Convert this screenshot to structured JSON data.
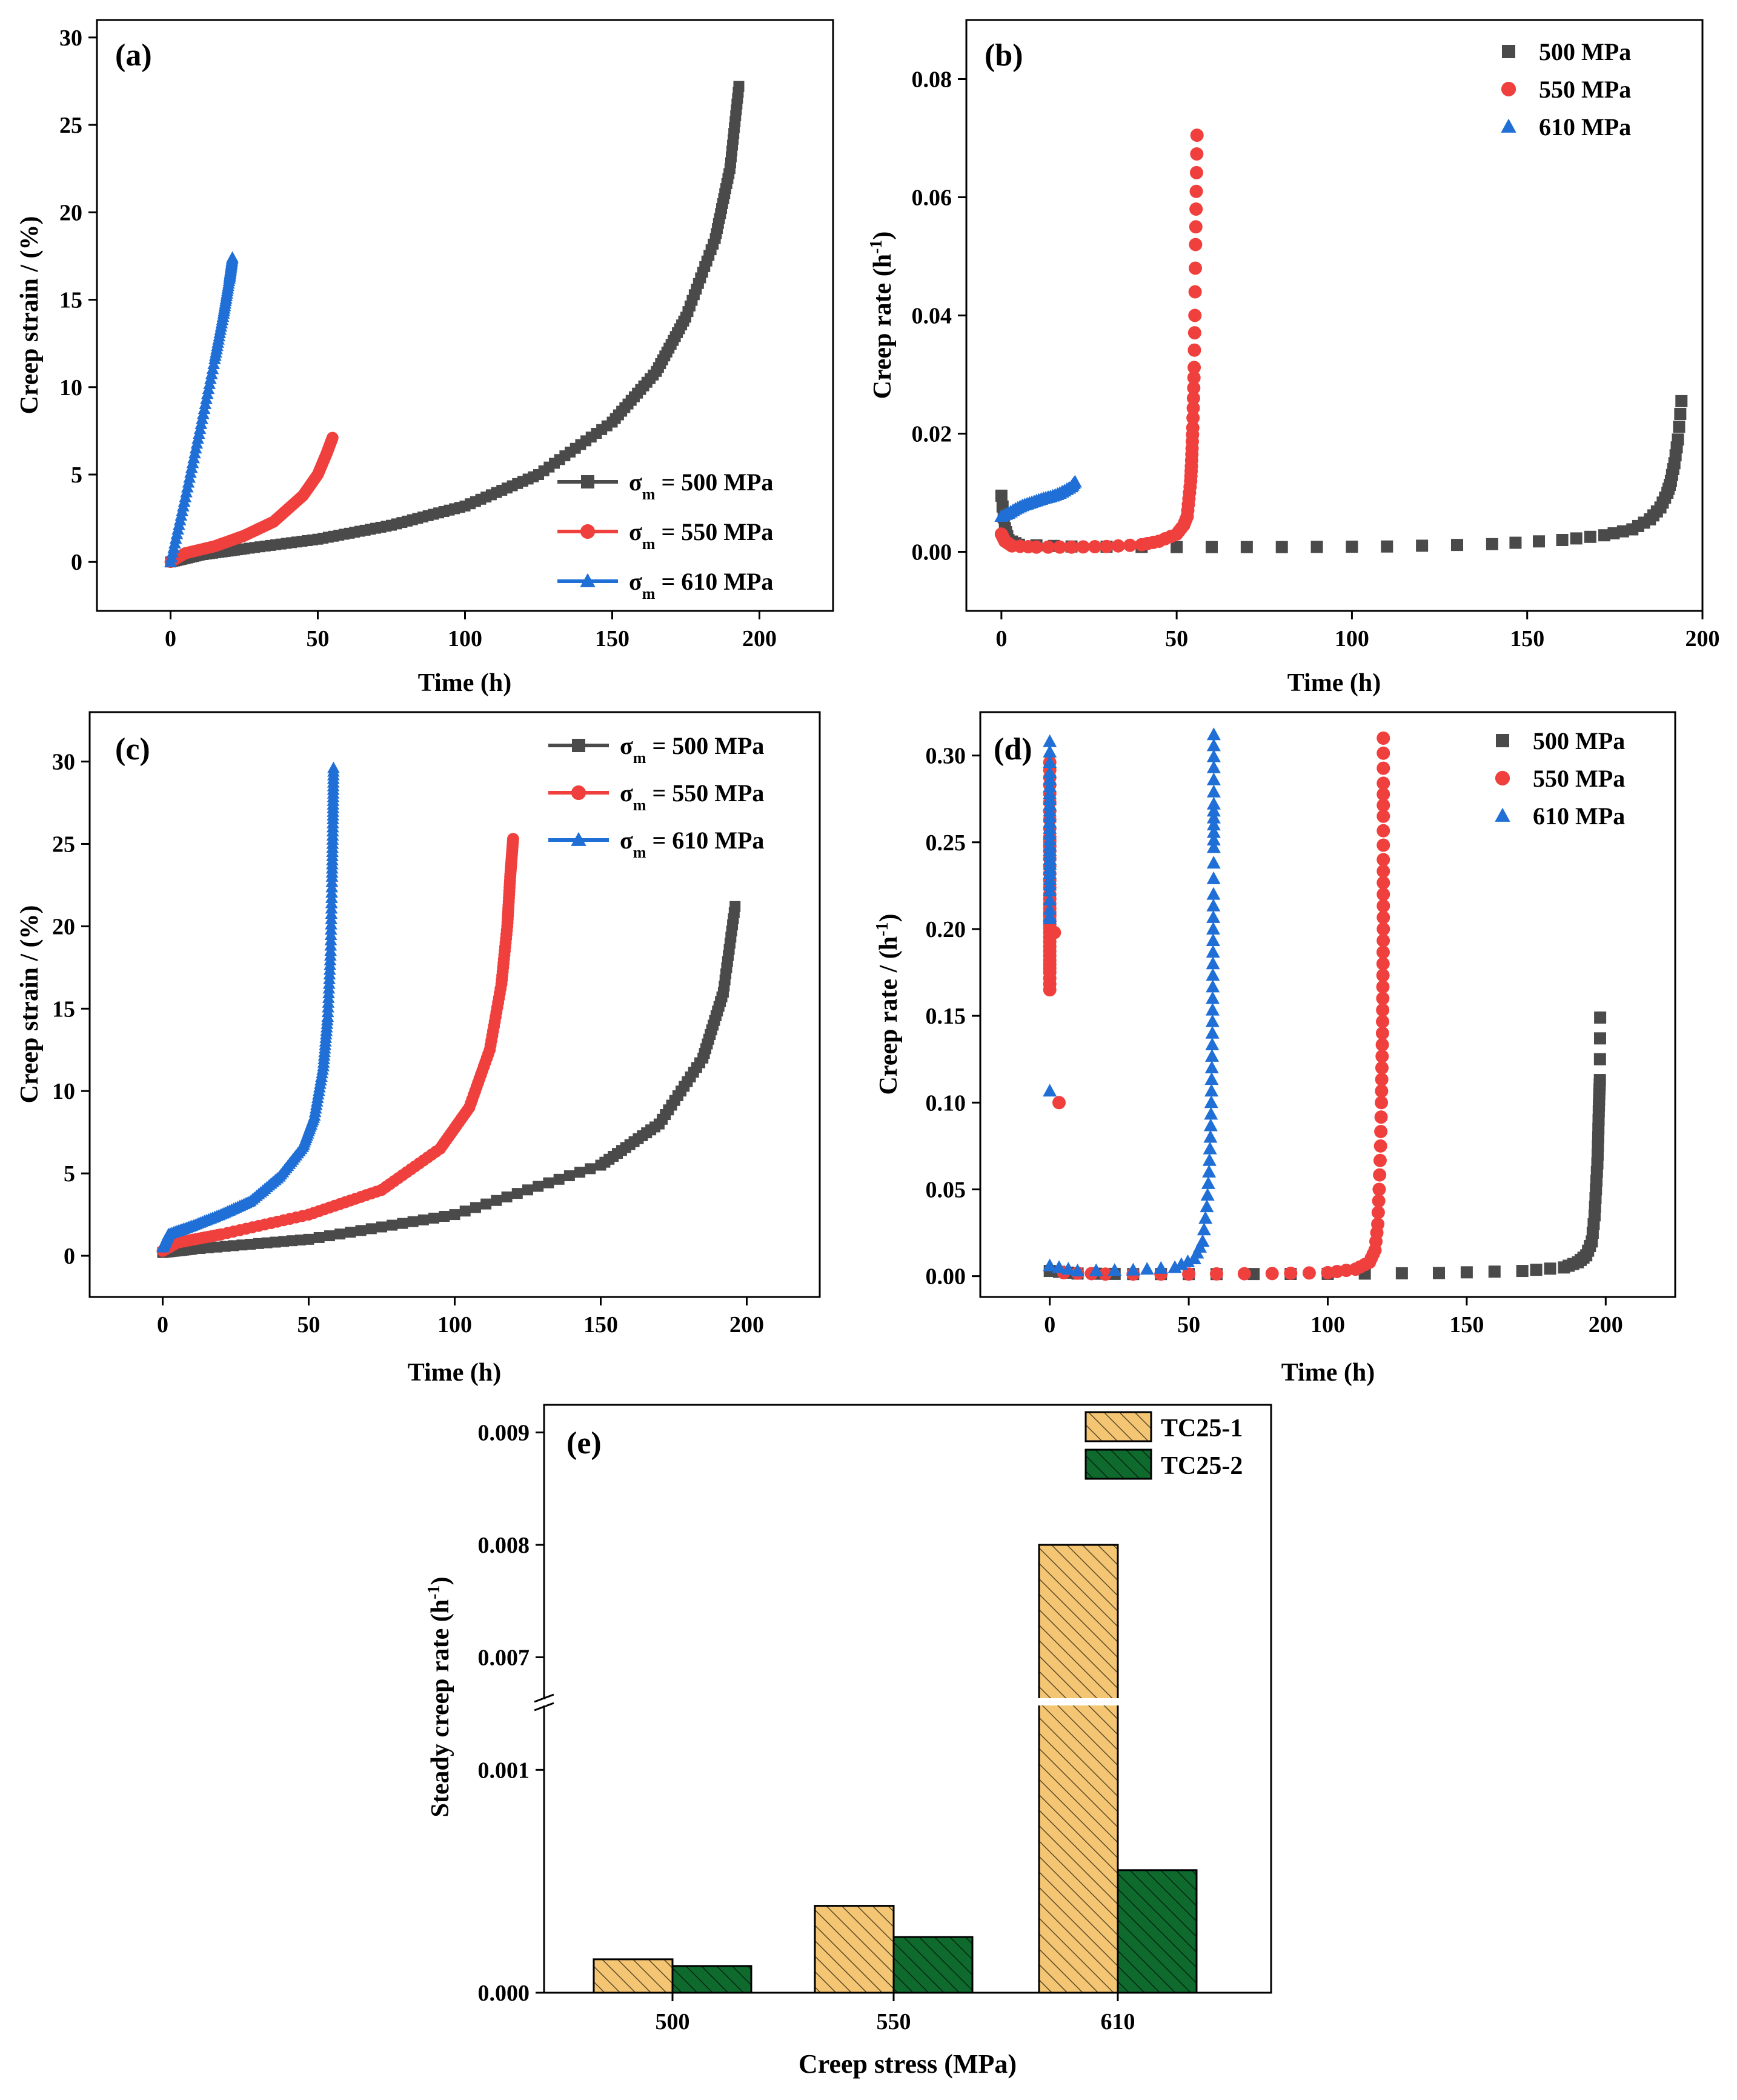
{
  "colors": {
    "s500": "#4a4a4a",
    "s550": "#f0403e",
    "s610": "#1f6fd6",
    "tc1": "#f4c674",
    "tc2": "#0f6a2e",
    "axis": "#000000"
  },
  "chart_data": [
    {
      "id": "a",
      "type": "line",
      "panel_label": "(a)",
      "xlabel": "Time (h)",
      "ylabel": "Creep strain / (%)",
      "xlim": [
        -25,
        225
      ],
      "ylim": [
        -2.8,
        31
      ],
      "xticks": [
        0,
        50,
        100,
        150,
        200
      ],
      "yticks": [
        0,
        5,
        10,
        15,
        20,
        25,
        30
      ],
      "legend_position": "bottom-right",
      "series": [
        {
          "name": "500 MPa",
          "legend_sub": "m",
          "legend_text": " = 500 MPa",
          "marker": "square",
          "color": "#4a4a4a",
          "points": [
            [
              0,
              0
            ],
            [
              10,
              0.4
            ],
            [
              25,
              0.75
            ],
            [
              50,
              1.3
            ],
            [
              75,
              2.1
            ],
            [
              100,
              3.2
            ],
            [
              125,
              5.0
            ],
            [
              150,
              8.0
            ],
            [
              165,
              10.9
            ],
            [
              175,
              14.0
            ],
            [
              185,
              18.5
            ],
            [
              190,
              22.5
            ],
            [
              193,
              27.2
            ]
          ]
        },
        {
          "name": "550 MPa",
          "legend_sub": "m",
          "legend_text": " = 550 MPa",
          "marker": "circle",
          "color": "#f0403e",
          "points": [
            [
              0,
              0
            ],
            [
              5,
              0.5
            ],
            [
              15,
              0.9
            ],
            [
              25,
              1.5
            ],
            [
              35,
              2.3
            ],
            [
              45,
              3.8
            ],
            [
              50,
              5.0
            ],
            [
              53,
              6.2
            ],
            [
              55,
              7.1
            ]
          ]
        },
        {
          "name": "610 MPa",
          "legend_sub": "m",
          "legend_text": " = 610 MPa",
          "marker": "triangle",
          "color": "#1f6fd6",
          "points": [
            [
              0,
              0
            ],
            [
              5,
              3.7
            ],
            [
              10,
              7.6
            ],
            [
              15,
              11.6
            ],
            [
              18,
              14.2
            ],
            [
              20,
              16.2
            ],
            [
              21,
              17.4
            ]
          ]
        }
      ]
    },
    {
      "id": "b",
      "type": "scatter",
      "panel_label": "(b)",
      "xlabel": "Time (h)",
      "ylabel": "Creep rate (h",
      "ylabel_sup": "-1",
      "ylabel_end": ")",
      "xlim": [
        -10,
        200
      ],
      "ylim": [
        -0.01,
        0.09
      ],
      "xticks": [
        0,
        50,
        100,
        150,
        200
      ],
      "yticks": [
        0.0,
        0.02,
        0.04,
        0.06,
        0.08
      ],
      "ytick_decimals": 2,
      "legend_position": "top-right",
      "series": [
        {
          "name": "500 MPa",
          "marker": "square",
          "color": "#4a4a4a",
          "points": [
            [
              0,
              0.0095
            ],
            [
              1,
              0.004
            ],
            [
              2,
              0.002
            ],
            [
              5,
              0.0012
            ],
            [
              20,
              0.0009
            ],
            [
              50,
              0.0008
            ],
            [
              80,
              0.0008
            ],
            [
              110,
              0.0009
            ],
            [
              140,
              0.0013
            ],
            [
              160,
              0.002
            ],
            [
              172,
              0.0028
            ],
            [
              180,
              0.0038
            ],
            [
              185,
              0.0055
            ],
            [
              188,
              0.0075
            ],
            [
              190,
              0.01
            ],
            [
              191,
              0.012
            ],
            [
              192,
              0.015
            ],
            [
              193,
              0.019
            ],
            [
              194,
              0.0255
            ]
          ]
        },
        {
          "name": "550 MPa",
          "marker": "circle",
          "color": "#f0403e",
          "points": [
            [
              0,
              0.003
            ],
            [
              1,
              0.0018
            ],
            [
              3,
              0.001
            ],
            [
              10,
              0.0008
            ],
            [
              20,
              0.0008
            ],
            [
              30,
              0.0009
            ],
            [
              40,
              0.0012
            ],
            [
              45,
              0.0018
            ],
            [
              50,
              0.003
            ],
            [
              52,
              0.0045
            ],
            [
              53,
              0.006
            ],
            [
              53.5,
              0.009
            ],
            [
              54,
              0.012
            ],
            [
              54.2,
              0.0145
            ],
            [
              54.4,
              0.0175
            ],
            [
              54.6,
              0.021
            ],
            [
              54.8,
              0.026
            ],
            [
              55,
              0.0312
            ],
            [
              55.2,
              0.04
            ],
            [
              55.4,
              0.052
            ],
            [
              55.6,
              0.061
            ],
            [
              55.8,
              0.0705
            ]
          ]
        },
        {
          "name": "610 MPa",
          "marker": "triangle",
          "color": "#1f6fd6",
          "points": [
            [
              0,
              0.006
            ],
            [
              2,
              0.0065
            ],
            [
              4,
              0.0072
            ],
            [
              6,
              0.0078
            ],
            [
              8,
              0.0082
            ],
            [
              10,
              0.0086
            ],
            [
              12,
              0.009
            ],
            [
              14,
              0.0093
            ],
            [
              16,
              0.0097
            ],
            [
              18,
              0.0103
            ],
            [
              20,
              0.011
            ],
            [
              21,
              0.0118
            ]
          ]
        }
      ]
    },
    {
      "id": "c",
      "type": "line",
      "panel_label": "(c)",
      "xlabel": "Time (h)",
      "ylabel": "Creep strain / (%)",
      "xlim": [
        -25,
        225
      ],
      "ylim": [
        -2.5,
        33
      ],
      "xticks": [
        0,
        50,
        100,
        150,
        200
      ],
      "yticks": [
        0,
        5,
        10,
        15,
        20,
        25,
        30
      ],
      "legend_position": "top-right",
      "series": [
        {
          "name": "500 MPa",
          "legend_sub": "m",
          "legend_text": " = 500 MPa",
          "marker": "square",
          "color": "#4a4a4a",
          "points": [
            [
              0,
              0.2
            ],
            [
              10,
              0.4
            ],
            [
              50,
              1.0
            ],
            [
              100,
              2.5
            ],
            [
              150,
              5.5
            ],
            [
              170,
              8.0
            ],
            [
              185,
              12.0
            ],
            [
              192,
              16.0
            ],
            [
              196,
              21.2
            ]
          ]
        },
        {
          "name": "550 MPa",
          "legend_sub": "m",
          "legend_text": " = 550 MPa",
          "marker": "circle",
          "color": "#f0403e",
          "points": [
            [
              0,
              0.3
            ],
            [
              5,
              0.8
            ],
            [
              20,
              1.3
            ],
            [
              50,
              2.5
            ],
            [
              75,
              4.0
            ],
            [
              95,
              6.5
            ],
            [
              105,
              9.0
            ],
            [
              112,
              12.5
            ],
            [
              116,
              16.5
            ],
            [
              118,
              20.0
            ],
            [
              119,
              23.0
            ],
            [
              120,
              25.3
            ]
          ]
        },
        {
          "name": "610 MPa",
          "legend_sub": "m",
          "legend_text": " = 610 MPa",
          "marker": "triangle",
          "color": "#1f6fd6",
          "points": [
            [
              0,
              0.5
            ],
            [
              2,
              1.3
            ],
            [
              10,
              1.8
            ],
            [
              20,
              2.5
            ],
            [
              30,
              3.3
            ],
            [
              40,
              4.8
            ],
            [
              48,
              6.6
            ],
            [
              52,
              8.5
            ],
            [
              55,
              11.5
            ],
            [
              56.5,
              14.5
            ],
            [
              57.5,
              18.5
            ],
            [
              58,
              23.0
            ],
            [
              58.3,
              26.5
            ],
            [
              58.5,
              29.6
            ]
          ]
        }
      ]
    },
    {
      "id": "d",
      "type": "scatter",
      "panel_label": "(d)",
      "xlabel": "Time (h)",
      "ylabel": "Creep rate / (h",
      "ylabel_sup": "-1",
      "ylabel_end": ")",
      "xlim": [
        -25,
        225
      ],
      "ylim": [
        -0.012,
        0.325
      ],
      "xticks": [
        0,
        50,
        100,
        150,
        200
      ],
      "yticks": [
        0.0,
        0.05,
        0.1,
        0.15,
        0.2,
        0.25,
        0.3
      ],
      "ytick_decimals": 2,
      "legend_position": "top-right",
      "series": [
        {
          "name": "500 MPa",
          "marker": "square",
          "color": "#4a4a4a",
          "points": [
            [
              0,
              0.003
            ],
            [
              10,
              0.0015
            ],
            [
              30,
              0.0012
            ],
            [
              60,
              0.0012
            ],
            [
              100,
              0.0013
            ],
            [
              140,
              0.0018
            ],
            [
              170,
              0.003
            ],
            [
              185,
              0.005
            ],
            [
              190,
              0.008
            ],
            [
              193,
              0.012
            ],
            [
              195,
              0.02
            ],
            [
              196,
              0.035
            ],
            [
              196.5,
              0.05
            ],
            [
              197,
              0.065
            ],
            [
              197.3,
              0.08
            ],
            [
              197.5,
              0.095
            ],
            [
              197.7,
              0.105
            ],
            [
              197.9,
              0.113
            ],
            [
              198,
              0.149
            ]
          ]
        },
        {
          "name": "550 MPa",
          "marker": "circle",
          "color": "#f0403e",
          "points": [
            [
              0,
              0.165
            ],
            [
              0,
              0.175
            ],
            [
              0,
              0.182
            ],
            [
              0,
              0.19
            ],
            [
              0,
              0.198
            ],
            [
              0,
              0.205
            ],
            [
              0,
              0.212
            ],
            [
              0,
              0.22
            ],
            [
              0,
              0.232
            ],
            [
              0,
              0.245
            ],
            [
              0,
              0.253
            ],
            [
              0,
              0.268
            ],
            [
              0,
              0.283
            ],
            [
              0,
              0.296
            ],
            [
              5,
              0.002
            ],
            [
              20,
              0.0012
            ],
            [
              50,
              0.0012
            ],
            [
              80,
              0.0015
            ],
            [
              100,
              0.002
            ],
            [
              110,
              0.004
            ],
            [
              115,
              0.008
            ],
            [
              117,
              0.015
            ],
            [
              118,
              0.03
            ],
            [
              118.5,
              0.05
            ],
            [
              119,
              0.075
            ],
            [
              119.3,
              0.1
            ],
            [
              119.5,
              0.12
            ],
            [
              119.7,
              0.14
            ],
            [
              119.8,
              0.16
            ],
            [
              119.9,
              0.18
            ],
            [
              120,
              0.2
            ],
            [
              120,
              0.22
            ],
            [
              120,
              0.24
            ],
            [
              120,
              0.265
            ],
            [
              120,
              0.284
            ],
            [
              120,
              0.31
            ]
          ]
        },
        {
          "name": "610 MPa",
          "marker": "triangle",
          "color": "#1f6fd6",
          "points": [
            [
              0,
              0.206
            ],
            [
              0,
              0.222
            ],
            [
              0,
              0.232
            ],
            [
              0,
              0.24
            ],
            [
              0,
              0.248
            ],
            [
              0,
              0.258
            ],
            [
              0,
              0.268
            ],
            [
              0,
              0.278
            ],
            [
              0,
              0.29
            ],
            [
              0,
              0.308
            ],
            [
              0,
              0.006
            ],
            [
              10,
              0.003
            ],
            [
              30,
              0.0035
            ],
            [
              45,
              0.005
            ],
            [
              52,
              0.01
            ],
            [
              55,
              0.02
            ],
            [
              56.5,
              0.04
            ],
            [
              57.3,
              0.06
            ],
            [
              57.8,
              0.08
            ],
            [
              58.1,
              0.1
            ],
            [
              58.3,
              0.12
            ],
            [
              58.5,
              0.14
            ],
            [
              58.6,
              0.16
            ],
            [
              58.7,
              0.18
            ],
            [
              58.8,
              0.2
            ],
            [
              58.9,
              0.22
            ],
            [
              59,
              0.247
            ],
            [
              59,
              0.26
            ],
            [
              59,
              0.272
            ],
            [
              59,
              0.293
            ],
            [
              59,
              0.312
            ]
          ]
        }
      ]
    },
    {
      "id": "e",
      "type": "bar",
      "panel_label": "(e)",
      "xlabel": "Creep stress (MPa)",
      "ylabel": "Steady creep rate  (h",
      "ylabel_sup": "-1",
      "ylabel_end": ")",
      "categories": [
        "500",
        "550",
        "610"
      ],
      "broken_axis": {
        "lower": [
          0,
          0.0013
        ],
        "upper": [
          0.00655,
          0.0091
        ]
      },
      "yticks_lower": [
        "0.000",
        "0.001"
      ],
      "yticks_upper": [
        "0.007",
        "0.008",
        "0.009"
      ],
      "legend_position": "top-right",
      "series": [
        {
          "name": "TC25-1",
          "hatch": "light",
          "color": "#f4c674",
          "values": [
            0.00015,
            0.00039,
            0.008
          ]
        },
        {
          "name": "TC25-2",
          "hatch": "dark",
          "color": "#0f6a2e",
          "values": [
            0.00012,
            0.00025,
            0.00055
          ]
        }
      ]
    }
  ]
}
